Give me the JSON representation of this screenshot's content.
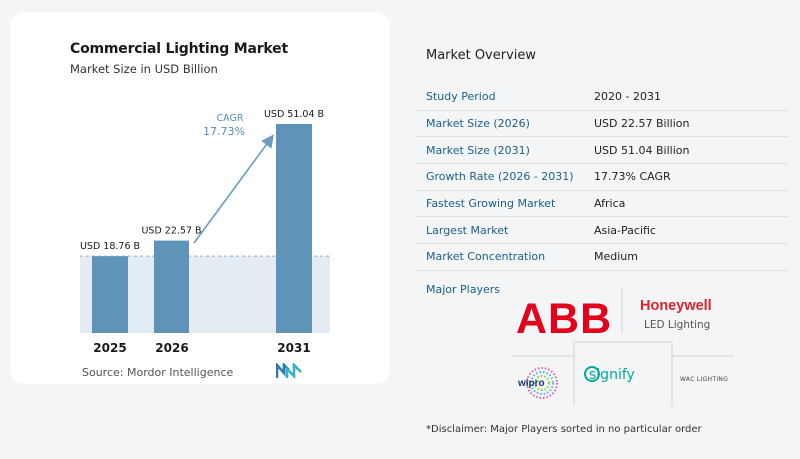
{
  "chart_data": {
    "type": "bar",
    "title": "Commercial Lighting Market",
    "subtitle": "Market Size in USD Billion",
    "categories": [
      "2025",
      "2026",
      "2031"
    ],
    "values": [
      18.76,
      22.57,
      51.04
    ],
    "value_labels": [
      "USD 18.76 B",
      "USD 22.57 B",
      "USD 51.04 B"
    ],
    "ylim": [
      0,
      51.04
    ],
    "cagr_label": "CAGR",
    "cagr_value": "17.73%",
    "bar_color": "#5f94b8",
    "reference_line_value": 18.76
  },
  "source": "Source:  Mordor Intelligence",
  "overview": {
    "title": "Market Overview",
    "rows": [
      {
        "label": "Study Period",
        "value": "2020 - 2031"
      },
      {
        "label": "Market Size (2026)",
        "value": "USD 22.57 Billion"
      },
      {
        "label": "Market Size (2031)",
        "value": "USD 51.04 Billion"
      },
      {
        "label": "Growth Rate (2026 - 2031)",
        "value": "17.73% CAGR"
      },
      {
        "label": "Fastest Growing Market",
        "value": "Africa"
      },
      {
        "label": "Largest Market",
        "value": "Asia-Pacific"
      },
      {
        "label": "Market Concentration",
        "value": "Medium"
      }
    ],
    "players_label": "Major Players",
    "players": {
      "abb": "ABB",
      "honeywell": "Honeywell",
      "honeywell_sub": "LED Lighting",
      "wipro": "wipro",
      "signify": "signify",
      "wac": "WAC LIGHTING"
    },
    "disclaimer": "*Disclaimer: Major Players sorted in no particular order"
  },
  "colors": {
    "accent": "#1d5f8a",
    "abb_red": "#e2001a",
    "honeywell_red": "#d9232e",
    "signify_teal": "#00a99d"
  }
}
